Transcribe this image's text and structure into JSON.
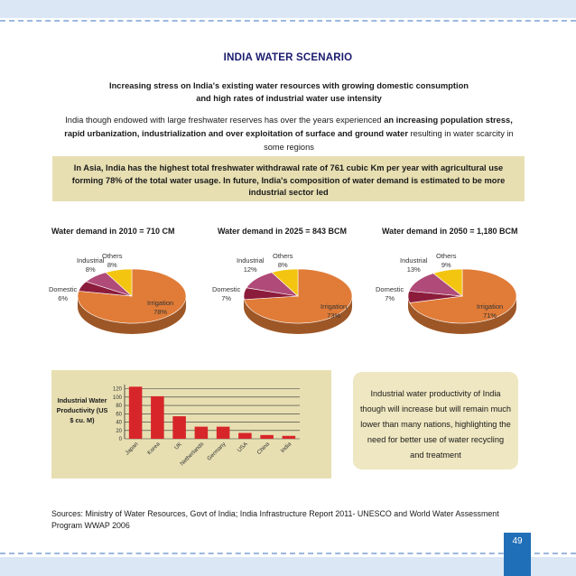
{
  "page": {
    "title": "INDIA WATER SCENARIO",
    "subtitle_line1": "Increasing stress on India's existing water resources with growing domestic consumption",
    "subtitle_line2": "and high rates of industrial water use intensity",
    "intro": {
      "p1": "India though endowed with large freshwater reserves has over the years experienced ",
      "b1": "an increasing population stress, rapid urbanization, industrialization and over exploitation of surface and ground water",
      "p2": " resulting in water scarcity in some regions"
    },
    "highlight": "In Asia, India has the highest total freshwater withdrawal rate of 761 cubic Km per year with agricultural use forming 78% of the total water usage. In future, India's composition of water demand is estimated to be more industrial sector led",
    "note": "Industrial water productivity of India though will increase but will remain much lower than many nations, highlighting the need for better use of water recycling and treatment",
    "sources": "Sources: Ministry of Water Resources, Govt of India; India Infrastructure Report 2011- UNESCO and World Water Assessment Program WWAP 2006",
    "page_number": "49"
  },
  "colors": {
    "irrigation": "#e07c38",
    "domestic": "#8c1c3c",
    "industrial": "#b04a78",
    "others": "#f3c511",
    "bar": "#d7262a",
    "panel": "#e7dfb2",
    "band": "#dbe7f5",
    "accent": "#1f6fb8"
  },
  "chart_data": [
    {
      "type": "pie",
      "title": "Water demand in 2010 = 710 CM",
      "labels": [
        "Irrigation",
        "Domestic",
        "Industrial",
        "Others"
      ],
      "values": [
        78,
        6,
        8,
        8
      ],
      "display": [
        "78%",
        "6%",
        "8%",
        "8%"
      ]
    },
    {
      "type": "pie",
      "title": "Water demand in 2025 = 843 BCM",
      "labels": [
        "Irrigation",
        "Domestic",
        "Industrial",
        "Others"
      ],
      "values": [
        73,
        7,
        12,
        8
      ],
      "display": [
        "73%",
        "7%",
        "12%",
        "8%"
      ]
    },
    {
      "type": "pie",
      "title": "Water demand in 2050 = 1,180 BCM",
      "labels": [
        "Irrigation",
        "Domestic",
        "Industrial",
        "Others"
      ],
      "values": [
        71,
        7,
        13,
        9
      ],
      "display": [
        "71%",
        "7%",
        "13%",
        "9%"
      ]
    },
    {
      "type": "bar",
      "ylabel": "Industrial Water Productivity (US $ cu. M)",
      "categories": [
        "Japan",
        "Korea",
        "UK",
        "Netherlands",
        "Germany",
        "USA",
        "China",
        "India"
      ],
      "values": [
        125,
        102,
        54,
        29,
        29,
        14,
        9,
        7
      ],
      "yticks": [
        0,
        20,
        40,
        60,
        80,
        100,
        120
      ],
      "ylim": [
        0,
        130
      ],
      "grid": true
    }
  ]
}
